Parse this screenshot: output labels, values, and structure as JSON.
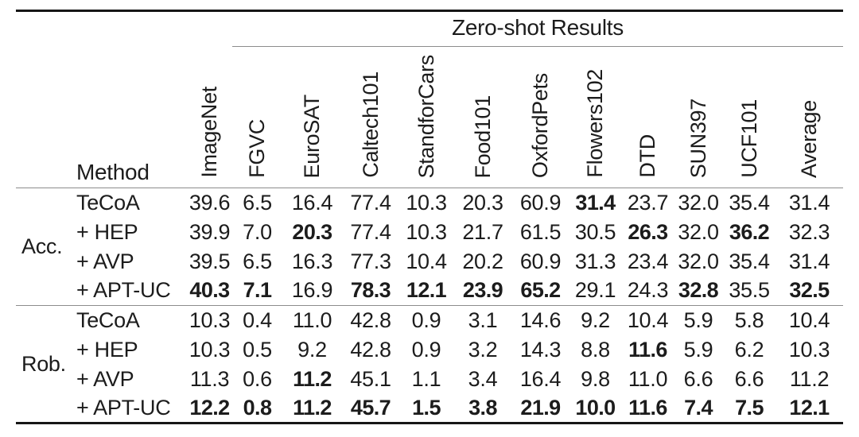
{
  "colors": {
    "rule_heavy": "#161616",
    "rule_light": "#8c8c8c",
    "text_color": "#1c1c1c",
    "bg_color": "#ffffff"
  },
  "table": {
    "title": "Zero-shot Results",
    "method_header": "Method",
    "columns": [
      "ImageNet",
      "FGVC",
      "EuroSAT",
      "Caltech101",
      "StandforCars",
      "Food101",
      "OxfordPets",
      "Flowers102",
      "DTD",
      "SUN397",
      "UCF101",
      "Average"
    ],
    "groups": [
      {
        "label": "Acc.",
        "rows": [
          {
            "method": "TeCoA",
            "values": [
              "39.6",
              "6.5",
              "16.4",
              "77.4",
              "10.3",
              "20.3",
              "60.9",
              "31.4",
              "23.7",
              "32.0",
              "35.4",
              "31.4"
            ],
            "bold": [
              7
            ]
          },
          {
            "method": "+ HEP",
            "values": [
              "39.9",
              "7.0",
              "20.3",
              "77.4",
              "10.3",
              "21.7",
              "61.5",
              "30.5",
              "26.3",
              "32.0",
              "36.2",
              "32.3"
            ],
            "bold": [
              2,
              8,
              10
            ]
          },
          {
            "method": "+ AVP",
            "values": [
              "39.5",
              "6.5",
              "16.3",
              "77.3",
              "10.4",
              "20.2",
              "60.9",
              "31.3",
              "23.4",
              "32.0",
              "35.4",
              "31.4"
            ],
            "bold": []
          },
          {
            "method": "+ APT-UC",
            "values": [
              "40.3",
              "7.1",
              "16.9",
              "78.3",
              "12.1",
              "23.9",
              "65.2",
              "29.1",
              "24.3",
              "32.8",
              "35.5",
              "32.5"
            ],
            "bold": [
              0,
              1,
              3,
              4,
              5,
              6,
              9,
              11
            ]
          }
        ]
      },
      {
        "label": "Rob.",
        "rows": [
          {
            "method": "TeCoA",
            "values": [
              "10.3",
              "0.4",
              "11.0",
              "42.8",
              "0.9",
              "3.1",
              "14.6",
              "9.2",
              "10.4",
              "5.9",
              "5.8",
              "10.4"
            ],
            "bold": []
          },
          {
            "method": "+ HEP",
            "values": [
              "10.3",
              "0.5",
              "9.2",
              "42.8",
              "0.9",
              "3.2",
              "14.3",
              "8.8",
              "11.6",
              "5.9",
              "6.2",
              "10.3"
            ],
            "bold": [
              8
            ]
          },
          {
            "method": "+ AVP",
            "values": [
              "11.3",
              "0.6",
              "11.2",
              "45.1",
              "1.1",
              "3.4",
              "16.4",
              "9.8",
              "11.0",
              "6.6",
              "6.6",
              "11.2"
            ],
            "bold": [
              2
            ]
          },
          {
            "method": "+ APT-UC",
            "values": [
              "12.2",
              "0.8",
              "11.2",
              "45.7",
              "1.5",
              "3.8",
              "21.9",
              "10.0",
              "11.6",
              "7.4",
              "7.5",
              "12.1"
            ],
            "bold": [
              0,
              1,
              2,
              3,
              4,
              5,
              6,
              7,
              8,
              9,
              10,
              11
            ]
          }
        ]
      }
    ]
  }
}
